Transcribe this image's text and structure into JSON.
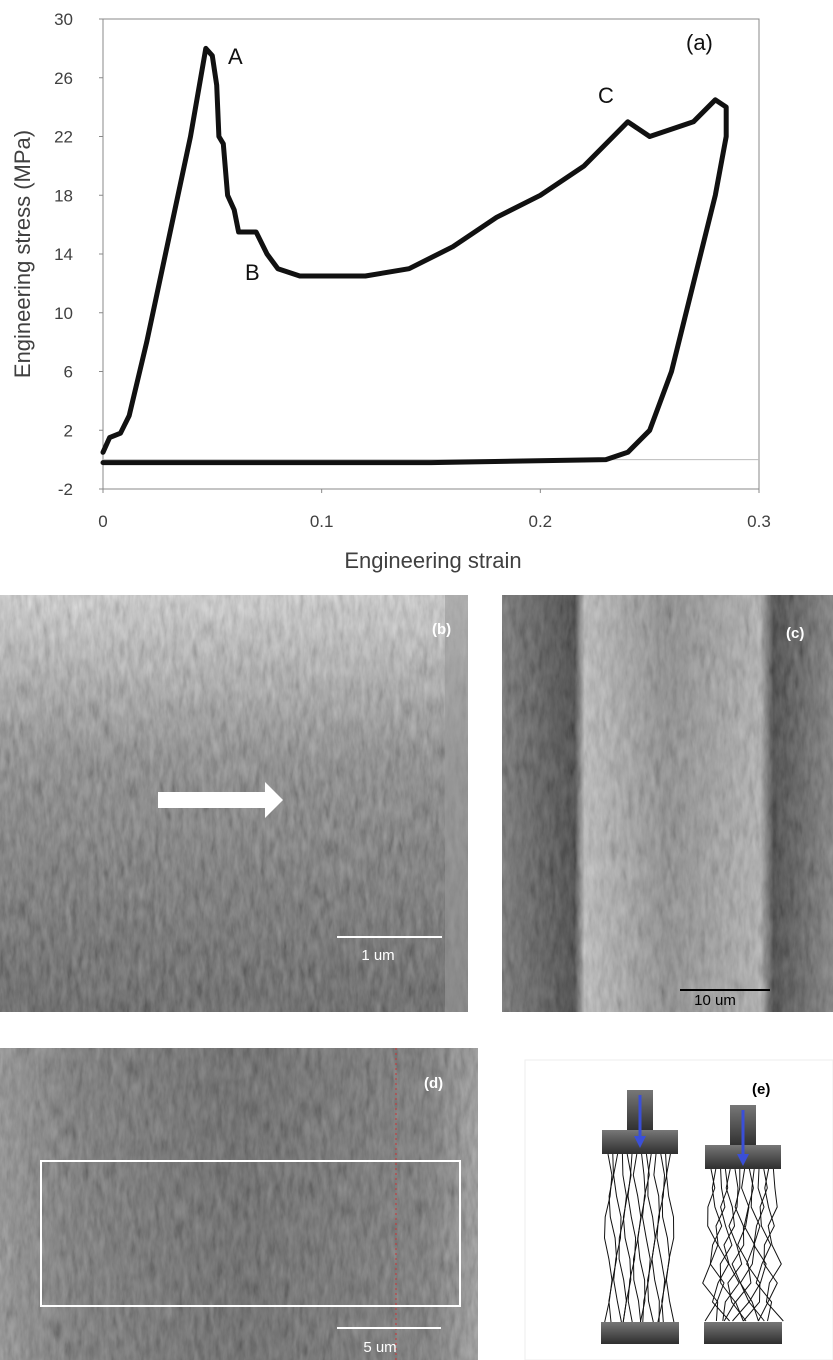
{
  "chart_data": {
    "type": "line",
    "ylabel": "Engineering stress (MPa)",
    "xlabel": "Engineering strain",
    "annotations": [
      "A",
      "B",
      "C",
      "(a)"
    ],
    "x": [
      0,
      0.003,
      0.008,
      0.012,
      0.02,
      0.03,
      0.04,
      0.047,
      0.05,
      0.052,
      0.053,
      0.055,
      0.057,
      0.06,
      0.062,
      0.07,
      0.075,
      0.08,
      0.09,
      0.1,
      0.12,
      0.14,
      0.16,
      0.18,
      0.2,
      0.22,
      0.24,
      0.25,
      0.27,
      0.28,
      0.285,
      0.285,
      0.28,
      0.27,
      0.26,
      0.25,
      0.24,
      0.23,
      0.15,
      0
    ],
    "values": [
      0.5,
      1.5,
      1.8,
      3,
      8,
      15,
      22,
      28,
      27.5,
      25.5,
      22,
      21.5,
      18,
      17,
      15.5,
      15.5,
      14,
      13,
      12.5,
      12.5,
      12.5,
      13,
      14.5,
      16.5,
      18,
      20,
      23,
      22,
      23,
      24.5,
      24,
      22,
      18,
      12,
      6,
      2,
      0.5,
      0,
      -0.2,
      -0.2
    ],
    "color": "#111111",
    "xlim": [
      0,
      0.3
    ],
    "ylim": [
      -2,
      30
    ],
    "xticks": [
      0,
      0.1,
      0.2,
      0.3
    ],
    "yticks": [
      -2,
      2,
      6,
      10,
      14,
      18,
      22,
      26,
      30
    ],
    "grid": false
  },
  "panels": [
    {
      "label": "(b)",
      "scale_bar": "1 um"
    },
    {
      "label": "(c)",
      "scale_bar": "10 um"
    },
    {
      "label": "(d)",
      "scale_bar": "5 um"
    },
    {
      "label": "(e)"
    }
  ]
}
